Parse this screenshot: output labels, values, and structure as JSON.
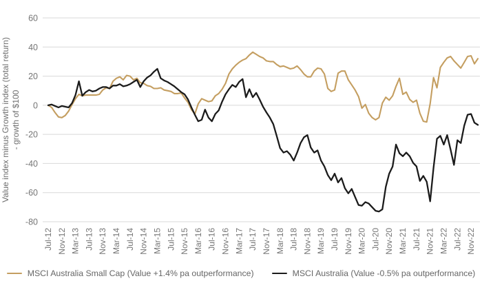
{
  "chart_data": {
    "type": "line",
    "title": "",
    "ylabel_line1": "Value index minus Growth index (total return)",
    "ylabel_line2": "- growth of $100",
    "ylim": [
      -80,
      60
    ],
    "yticks": [
      60,
      40,
      20,
      0,
      -20,
      -40,
      -60,
      -80
    ],
    "x_tick_every": 4,
    "grid": "horizontal",
    "legend_position": "bottom",
    "colors": {
      "grid": "#d8d8d8",
      "axis_text": "#757575"
    },
    "x": [
      "Jul-12",
      "Aug-12",
      "Sep-12",
      "Oct-12",
      "Nov-12",
      "Dec-12",
      "Jan-13",
      "Feb-13",
      "Mar-13",
      "Apr-13",
      "May-13",
      "Jun-13",
      "Jul-13",
      "Aug-13",
      "Sep-13",
      "Oct-13",
      "Nov-13",
      "Dec-13",
      "Jan-14",
      "Feb-14",
      "Mar-14",
      "Apr-14",
      "May-14",
      "Jun-14",
      "Jul-14",
      "Aug-14",
      "Sep-14",
      "Oct-14",
      "Nov-14",
      "Dec-14",
      "Jan-15",
      "Feb-15",
      "Mar-15",
      "Apr-15",
      "May-15",
      "Jun-15",
      "Jul-15",
      "Aug-15",
      "Sep-15",
      "Oct-15",
      "Nov-15",
      "Dec-15",
      "Jan-16",
      "Feb-16",
      "Mar-16",
      "Apr-16",
      "May-16",
      "Jun-16",
      "Jul-16",
      "Aug-16",
      "Sep-16",
      "Oct-16",
      "Nov-16",
      "Dec-16",
      "Jan-17",
      "Feb-17",
      "Mar-17",
      "Apr-17",
      "May-17",
      "Jun-17",
      "Jul-17",
      "Aug-17",
      "Sep-17",
      "Oct-17",
      "Nov-17",
      "Dec-17",
      "Jan-18",
      "Feb-18",
      "Mar-18",
      "Apr-18",
      "May-18",
      "Jun-18",
      "Jul-18",
      "Aug-18",
      "Sep-18",
      "Oct-18",
      "Nov-18",
      "Dec-18",
      "Jan-19",
      "Feb-19",
      "Mar-19",
      "Apr-19",
      "May-19",
      "Jun-19",
      "Jul-19",
      "Aug-19",
      "Sep-19",
      "Oct-19",
      "Nov-19",
      "Dec-19",
      "Jan-20",
      "Feb-20",
      "Mar-20",
      "Apr-20",
      "May-20",
      "Jun-20",
      "Jul-20",
      "Aug-20",
      "Sep-20",
      "Oct-20",
      "Nov-20",
      "Dec-20",
      "Jan-21",
      "Feb-21",
      "Mar-21",
      "Apr-21",
      "May-21",
      "Jun-21",
      "Jul-21",
      "Aug-21",
      "Sep-21",
      "Oct-21",
      "Nov-21",
      "Dec-21",
      "Jan-22",
      "Feb-22",
      "Mar-22",
      "Apr-22",
      "May-22",
      "Jun-22",
      "Jul-22",
      "Aug-22",
      "Sep-22",
      "Oct-22",
      "Nov-22",
      "Dec-22",
      "Jan-23"
    ],
    "series": [
      {
        "name": "MSCI Australia Small Cap (Value +1.4% pa outperformance)",
        "color": "#c49e60",
        "values": [
          0,
          -1.5,
          -5,
          -8,
          -8.5,
          -7,
          -4,
          0.5,
          4.5,
          7.5,
          6.5,
          7,
          7,
          7,
          7,
          7.5,
          10.5,
          12,
          11.5,
          16.5,
          18.5,
          19.5,
          17.5,
          20.5,
          20,
          17.5,
          18.5,
          15.5,
          15,
          13.5,
          13,
          11.5,
          11.5,
          12,
          10.5,
          10,
          9.5,
          8,
          8,
          8.5,
          5,
          2,
          -3,
          -6,
          1,
          4.5,
          3.5,
          2.5,
          3,
          6.5,
          8,
          11,
          15,
          21.5,
          25,
          27.5,
          29.5,
          31,
          32,
          34.5,
          36.5,
          35,
          33.5,
          32.5,
          30.5,
          30,
          30,
          28,
          26.5,
          27,
          26,
          25,
          25.5,
          27,
          24.5,
          21.5,
          19.5,
          19.5,
          23.5,
          25.5,
          25,
          21.5,
          11.5,
          9.5,
          10.5,
          22,
          23.5,
          23.5,
          17.5,
          14,
          10.5,
          6,
          -2,
          0.5,
          -5.5,
          -8.5,
          -10,
          -8.5,
          1.5,
          5.5,
          3.5,
          6.5,
          13,
          18.5,
          7.5,
          9,
          4,
          2,
          3.5,
          -5.5,
          -11,
          -11.5,
          1,
          19,
          12,
          26,
          29.5,
          32.5,
          33.5,
          30.5,
          28,
          25.5,
          29.5,
          33.5,
          34,
          28.5,
          32
        ]
      },
      {
        "name": "MSCI Australia (Value -0.5% pa outperformance)",
        "color": "#1b1b1b",
        "values": [
          0,
          0.5,
          -0.5,
          -1.5,
          -0.5,
          -1,
          -1.5,
          1.5,
          7,
          16.5,
          6.5,
          9,
          10.5,
          9.5,
          10,
          11.5,
          12.5,
          12.5,
          11.5,
          13.5,
          13.5,
          14.5,
          13,
          13.5,
          14.5,
          16,
          17.5,
          12.5,
          16.5,
          19,
          20.5,
          23,
          25,
          18.5,
          17,
          16,
          14.5,
          13,
          11,
          9,
          7.5,
          4,
          -1.5,
          -6.5,
          -11,
          -10,
          -3,
          -8.5,
          -11,
          -6,
          -3.5,
          2.5,
          7.5,
          11,
          14,
          12.5,
          16,
          18,
          5.5,
          11,
          5.5,
          8.5,
          4,
          -1,
          -5,
          -8.5,
          -13,
          -21,
          -29.5,
          -32.5,
          -31.5,
          -34,
          -38,
          -32.5,
          -26,
          -22,
          -20.5,
          -29,
          -32.5,
          -31,
          -38,
          -42,
          -48,
          -51.5,
          -47,
          -53,
          -50,
          -57,
          -60.5,
          -57.5,
          -63,
          -68.5,
          -69,
          -66.5,
          -67.5,
          -70,
          -72.5,
          -73,
          -71.5,
          -56,
          -47,
          -42,
          -27,
          -33,
          -35,
          -32.5,
          -35,
          -39.5,
          -42,
          -52,
          -48.5,
          -52.5,
          -66,
          -43,
          -23,
          -21,
          -27,
          -20.5,
          -30.5,
          -41,
          -24,
          -26,
          -14,
          -6.5,
          -6,
          -12,
          -13.5
        ]
      }
    ]
  }
}
